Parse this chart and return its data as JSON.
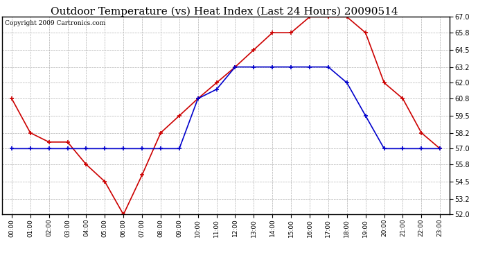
{
  "title": "Outdoor Temperature (vs) Heat Index (Last 24 Hours) 20090514",
  "copyright": "Copyright 2009 Cartronics.com",
  "hours": [
    "00:00",
    "01:00",
    "02:00",
    "03:00",
    "04:00",
    "05:00",
    "06:00",
    "07:00",
    "08:00",
    "09:00",
    "10:00",
    "11:00",
    "12:00",
    "13:00",
    "14:00",
    "15:00",
    "16:00",
    "17:00",
    "18:00",
    "19:00",
    "20:00",
    "21:00",
    "22:00",
    "23:00"
  ],
  "temp_red": [
    60.8,
    58.2,
    57.5,
    57.5,
    55.8,
    54.5,
    52.0,
    55.0,
    58.2,
    59.5,
    60.8,
    62.0,
    63.2,
    64.5,
    65.8,
    65.8,
    67.0,
    67.0,
    67.0,
    65.8,
    62.0,
    60.8,
    58.2,
    57.0
  ],
  "heat_blue": [
    57.0,
    57.0,
    57.0,
    57.0,
    57.0,
    57.0,
    57.0,
    57.0,
    57.0,
    57.0,
    60.8,
    61.5,
    63.2,
    63.2,
    63.2,
    63.2,
    63.2,
    63.2,
    62.0,
    59.5,
    57.0,
    57.0,
    57.0,
    57.0
  ],
  "ylim": [
    52.0,
    67.0
  ],
  "yticks": [
    52.0,
    53.2,
    54.5,
    55.8,
    57.0,
    58.2,
    59.5,
    60.8,
    62.0,
    63.2,
    64.5,
    65.8,
    67.0
  ],
  "red_color": "#cc0000",
  "blue_color": "#0000cc",
  "bg_color": "#ffffff",
  "plot_bg": "#ffffff",
  "grid_color": "#b0b0b0",
  "title_fontsize": 11,
  "copyright_fontsize": 6.5
}
